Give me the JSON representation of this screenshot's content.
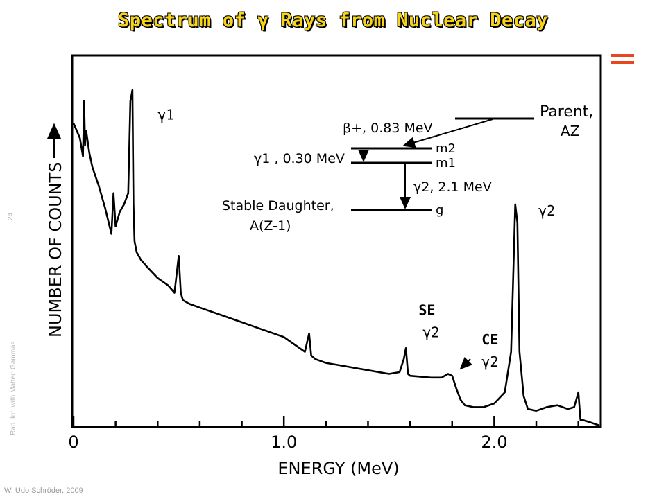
{
  "slide": {
    "title": "Spectrum of γ Rays from Nuclear Decay",
    "side_note": "Rad. Int. with Matter: Gammas",
    "page_number": "24",
    "author": "W. Udo Schröder, 2009",
    "accent_color": "#e8461f",
    "title_color": "#f7d417"
  },
  "chart_data": {
    "type": "line",
    "title": "Spectrum of γ Rays from Nuclear Decay",
    "xlabel": "ENERGY (MeV)",
    "ylabel": "NUMBER OF COUNTS",
    "xlim": [
      0,
      2.5
    ],
    "ylim": [
      0,
      100
    ],
    "x_ticks": [
      0,
      0.2,
      0.4,
      0.6,
      0.8,
      1.0,
      1.2,
      1.4,
      1.6,
      1.8,
      2.0,
      2.2,
      2.4
    ],
    "x_tick_labels": [
      {
        "x": 0,
        "label": "0"
      },
      {
        "x": 1.0,
        "label": "1.0"
      },
      {
        "x": 2.0,
        "label": "2.0"
      }
    ],
    "y_axis_values_shown": false,
    "grid": false,
    "series": [
      {
        "x": [
          0,
          0.03,
          0.045,
          0.05,
          0.055,
          0.06,
          0.075,
          0.09,
          0.12,
          0.15,
          0.18,
          0.19,
          0.2,
          0.22,
          0.24,
          0.26,
          0.27,
          0.28,
          0.285,
          0.29,
          0.3,
          0.31,
          0.32,
          0.35,
          0.4,
          0.45,
          0.48,
          0.5,
          0.51,
          0.52,
          0.55,
          0.6,
          0.7,
          0.8,
          0.9,
          1.0,
          1.05,
          1.1,
          1.12,
          1.13,
          1.15,
          1.2,
          1.3,
          1.4,
          1.5,
          1.55,
          1.57,
          1.58,
          1.59,
          1.6,
          1.7,
          1.75,
          1.78,
          1.8,
          1.82,
          1.84,
          1.86,
          1.9,
          1.95,
          2.0,
          2.05,
          2.08,
          2.1,
          2.11,
          2.12,
          2.14,
          2.16,
          2.2,
          2.25,
          2.3,
          2.35,
          2.38,
          2.4,
          2.41,
          2.42,
          2.45,
          2.5
        ],
        "y": [
          82,
          78,
          73,
          88,
          76,
          80,
          74,
          70,
          65,
          59,
          52,
          63,
          54,
          58,
          60,
          63,
          88,
          91,
          60,
          50,
          47,
          46,
          45,
          43,
          40,
          38,
          36,
          46,
          36,
          34,
          33,
          32,
          30,
          28,
          26,
          24,
          22,
          20,
          25,
          19,
          18,
          17,
          16,
          15,
          14,
          14.5,
          18,
          21,
          14,
          13.5,
          13,
          13,
          14,
          13.5,
          10,
          7,
          5.5,
          5,
          5,
          6,
          9,
          20,
          60,
          55,
          20,
          8,
          4.5,
          4,
          5,
          5.5,
          4.5,
          5,
          9,
          1.5,
          1.5,
          1,
          0
        ]
      }
    ],
    "annotations": [
      {
        "text": "γ1",
        "x": 0.44,
        "y": 83
      },
      {
        "text": "SE",
        "x": 1.68,
        "y": 30
      },
      {
        "text": "γ2",
        "x": 1.7,
        "y": 24
      },
      {
        "text": "CE",
        "x": 1.98,
        "y": 22
      },
      {
        "text": "γ2",
        "x": 1.98,
        "y": 16
      },
      {
        "text": "γ2",
        "x": 2.25,
        "y": 57
      }
    ],
    "decay_scheme": {
      "parent_label": "Parent,",
      "parent_nucleus": "AZ",
      "beta_label": "β+, 0.83 MeV",
      "gamma1_label": "γ1 , 0.30 MeV",
      "gamma2_label": "γ2, 2.1 MeV",
      "levels": [
        "m2",
        "m1",
        "g"
      ],
      "daughter_label": "Stable Daughter,",
      "daughter_nucleus": "A(Z-1)"
    }
  }
}
